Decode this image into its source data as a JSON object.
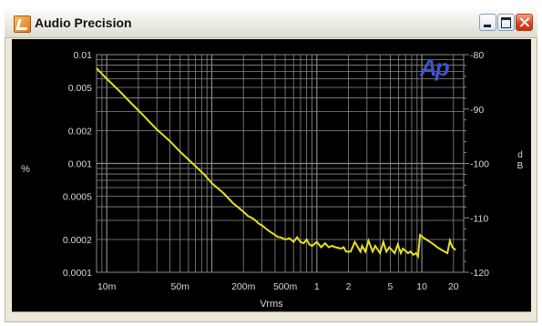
{
  "window": {
    "title": "Audio Precision",
    "icon": "audio-precision-app-icon"
  },
  "controls": {
    "minimize_icon": "minimize-icon",
    "maximize_icon": "maximize-icon",
    "close_icon": "close-icon"
  },
  "watermark": "Ap",
  "chart_data": {
    "type": "line",
    "xlabel": "Vrms",
    "ylabel_left": "%",
    "ylabel_right": "d\nB",
    "xscale": "log",
    "yscale": "log",
    "xlim": [
      0.008,
      25
    ],
    "ylim_left": [
      0.0001,
      0.01
    ],
    "ylim_right": [
      -120,
      -80
    ],
    "x_ticks": [
      {
        "value": 0.01,
        "label": "10m"
      },
      {
        "value": 0.05,
        "label": "50m"
      },
      {
        "value": 0.2,
        "label": "200m"
      },
      {
        "value": 0.5,
        "label": "500m"
      },
      {
        "value": 1,
        "label": "1"
      },
      {
        "value": 2,
        "label": "2"
      },
      {
        "value": 5,
        "label": "5"
      },
      {
        "value": 10,
        "label": "10"
      },
      {
        "value": 20,
        "label": "20"
      }
    ],
    "y_ticks_left": [
      {
        "value": 0.01,
        "label": "0.01"
      },
      {
        "value": 0.005,
        "label": "0.005"
      },
      {
        "value": 0.002,
        "label": "0.002"
      },
      {
        "value": 0.001,
        "label": "0.001"
      },
      {
        "value": 0.0005,
        "label": "0.0005"
      },
      {
        "value": 0.0002,
        "label": "0.0002"
      },
      {
        "value": 0.0001,
        "label": "0.0001"
      }
    ],
    "y_ticks_right": [
      {
        "value": -80,
        "label": "-80"
      },
      {
        "value": -90,
        "label": "-90"
      },
      {
        "value": -100,
        "label": "-100"
      },
      {
        "value": -110,
        "label": "-110"
      },
      {
        "value": -120,
        "label": "-120"
      }
    ],
    "grid": true,
    "colors": {
      "background": "#000000",
      "grid": "#8a8a8a",
      "trace": "#e8e020",
      "text": "#d8d8d8",
      "watermark": "#3d55c8"
    },
    "series": [
      {
        "x": [
          0.008,
          0.01,
          0.013,
          0.017,
          0.022,
          0.03,
          0.04,
          0.05,
          0.065,
          0.085,
          0.1,
          0.13,
          0.16,
          0.2,
          0.22,
          0.25,
          0.28,
          0.3,
          0.33,
          0.35,
          0.4,
          0.43,
          0.45,
          0.5,
          0.55,
          0.6,
          0.65,
          0.7,
          0.75,
          0.8,
          0.85,
          0.9,
          1.0,
          1.1,
          1.2,
          1.3,
          1.4,
          1.5,
          1.7,
          1.8,
          1.9,
          2.1,
          2.3,
          2.6,
          2.7,
          2.9,
          3.1,
          3.4,
          3.6,
          4.0,
          4.3,
          4.6,
          4.9,
          5.5,
          5.9,
          6.3,
          6.6,
          7.4,
          7.8,
          8.3,
          8.8,
          9.2,
          9.6,
          11,
          12,
          13,
          14,
          15.5,
          17.5,
          18.5,
          19.5,
          21
        ],
        "y": [
          0.0075,
          0.006,
          0.0047,
          0.0036,
          0.0028,
          0.00205,
          0.0016,
          0.00128,
          0.00101,
          0.00079,
          0.00066,
          0.00053,
          0.00043,
          0.00036,
          0.00033,
          0.00031,
          0.00028,
          0.00027,
          0.00025,
          0.00024,
          0.00022,
          0.00021,
          0.00021,
          0.0002,
          0.000205,
          0.00019,
          0.00021,
          0.00019,
          0.000185,
          0.0002,
          0.00018,
          0.000175,
          0.00019,
          0.00017,
          0.000185,
          0.00017,
          0.000175,
          0.00017,
          0.000165,
          0.00017,
          0.000155,
          0.000155,
          0.00019,
          0.000155,
          0.000175,
          0.000155,
          0.000195,
          0.000155,
          0.000175,
          0.00015,
          0.00019,
          0.000155,
          0.00017,
          0.00015,
          0.00018,
          0.00015,
          0.000165,
          0.00015,
          0.000155,
          0.000145,
          0.00015,
          0.00014,
          0.00022,
          0.0002,
          0.00019,
          0.00018,
          0.00017,
          0.00016,
          0.00015,
          0.000195,
          0.00017,
          0.00016
        ]
      }
    ]
  }
}
